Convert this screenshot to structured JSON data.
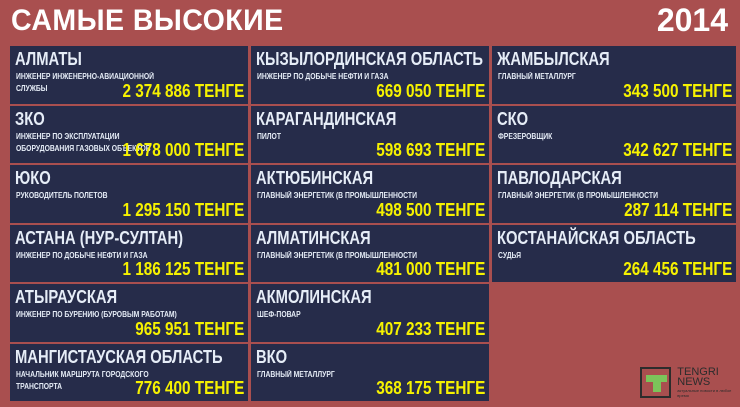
{
  "header": {
    "title": "САМЫЕ ВЫСОКИЕ",
    "year": "2014"
  },
  "cards": [
    {
      "region": "АЛМАТЫ",
      "job": "ИНЖЕНЕР ИНЖЕНЕРНО-АВИАЦИОННОЙ СЛУЖБЫ",
      "salary": "2 374 886 ТЕНГЕ"
    },
    {
      "region": "КЫЗЫЛОРДИНСКАЯ ОБЛАСТЬ",
      "job": "ИНЖЕНЕР ПО ДОБЫЧЕ НЕФТИ И ГАЗА",
      "salary": "669 050 ТЕНГЕ"
    },
    {
      "region": "ЖАМБЫЛСКАЯ",
      "job": "ГЛАВНЫЙ МЕТАЛЛУРГ",
      "salary": "343 500 ТЕНГЕ"
    },
    {
      "region": "ЗКО",
      "job": "ИНЖЕНЕР ПО ЭКСПЛУАТАЦИИ ОБОРУДОВАНИЯ ГАЗОВЫХ ОБЪЕКТОВ",
      "salary": "1 678 000 ТЕНГЕ"
    },
    {
      "region": "КАРАГАНДИНСКАЯ",
      "job": "ПИЛОТ",
      "salary": "598 693 ТЕНГЕ"
    },
    {
      "region": "СКО",
      "job": "ФРЕЗЕРОВЩИК",
      "salary": "342 627 ТЕНГЕ"
    },
    {
      "region": "ЮКО",
      "job": "РУКОВОДИТЕЛЬ ПОЛЕТОВ",
      "salary": "1 295 150 ТЕНГЕ"
    },
    {
      "region": "АКТЮБИНСКАЯ",
      "job": "ГЛАВНЫЙ ЭНЕРГЕТИК (В ПРОМЫШЛЕННОСТИ",
      "salary": "498 500 ТЕНГЕ"
    },
    {
      "region": "ПАВЛОДАРСКАЯ",
      "job": "ГЛАВНЫЙ ЭНЕРГЕТИК (В ПРОМЫШЛЕННОСТИ",
      "salary": "287 114 ТЕНГЕ"
    },
    {
      "region": "АСТАНА (НУР-СУЛТАН)",
      "job": "ИНЖЕНЕР ПО ДОБЫЧЕ НЕФТИ И ГАЗА",
      "salary": "1 186 125 ТЕНГЕ"
    },
    {
      "region": "АЛМАТИНСКАЯ",
      "job": "ГЛАВНЫЙ ЭНЕРГЕТИК (В ПРОМЫШЛЕННОСТИ",
      "salary": "481 000 ТЕНГЕ"
    },
    {
      "region": "КОСТАНАЙСКАЯ ОБЛАСТЬ",
      "job": "СУДЬЯ",
      "salary": "264 456 ТЕНГЕ"
    },
    {
      "region": "АТЫРАУСКАЯ",
      "job": "ИНЖЕНЕР ПО БУРЕНИЮ (БУРОВЫМ РАБОТАМ)",
      "salary": "965 951 ТЕНГЕ"
    },
    {
      "region": "АКМОЛИНСКАЯ",
      "job": "ШЕФ-ПОВАР",
      "salary": "407 233 ТЕНГЕ"
    },
    null,
    {
      "region": "МАНГИСТАУСКАЯ ОБЛАСТЬ",
      "job": "НАЧАЛЬНИК МАРШРУТА ГОРОДСКОГО ТРАНСПОРТА",
      "salary": "776 400 ТЕНГЕ"
    },
    {
      "region": "ВКО",
      "job": "ГЛАВНЫЙ МЕТАЛЛУРГ",
      "salary": "368 175 ТЕНГЕ"
    }
  ],
  "logo": {
    "line1": "TENGRI",
    "line2": "NEWS",
    "tagline": "актуальные новости в любое время"
  },
  "colors": {
    "background": "#a94f4f",
    "card": "#262c4a",
    "salary": "#f6f200",
    "text": "#e6edf7"
  }
}
